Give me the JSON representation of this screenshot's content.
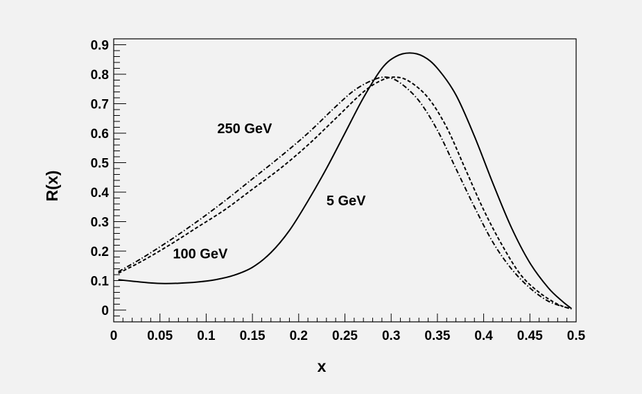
{
  "chart_data": {
    "type": "line",
    "xlabel": "x",
    "ylabel": "R(x)",
    "xlim": [
      0,
      0.5
    ],
    "ylim": [
      -0.04,
      0.92
    ],
    "grid": false,
    "legend": "none",
    "x_ticks": [
      {
        "value": 0,
        "label": "0"
      },
      {
        "value": 0.05,
        "label": "0.05"
      },
      {
        "value": 0.1,
        "label": "0.1"
      },
      {
        "value": 0.15,
        "label": "0.15"
      },
      {
        "value": 0.2,
        "label": "0.2"
      },
      {
        "value": 0.25,
        "label": "0.25"
      },
      {
        "value": 0.3,
        "label": "0.3"
      },
      {
        "value": 0.35,
        "label": "0.35"
      },
      {
        "value": 0.4,
        "label": "0.4"
      },
      {
        "value": 0.45,
        "label": "0.45"
      },
      {
        "value": 0.5,
        "label": "0.5"
      }
    ],
    "y_ticks": [
      {
        "value": 0,
        "label": "0"
      },
      {
        "value": 0.1,
        "label": "0.1"
      },
      {
        "value": 0.2,
        "label": "0.2"
      },
      {
        "value": 0.3,
        "label": "0.3"
      },
      {
        "value": 0.4,
        "label": "0.4"
      },
      {
        "value": 0.5,
        "label": "0.5"
      },
      {
        "value": 0.6,
        "label": "0.6"
      },
      {
        "value": 0.7,
        "label": "0.7"
      },
      {
        "value": 0.8,
        "label": "0.8"
      },
      {
        "value": 0.9,
        "label": "0.9"
      }
    ],
    "series": [
      {
        "id": "5gev",
        "dash": "solid",
        "color": "#000000",
        "x": [
          0.005,
          0.02,
          0.04,
          0.055,
          0.07,
          0.09,
          0.11,
          0.13,
          0.15,
          0.17,
          0.19,
          0.21,
          0.23,
          0.25,
          0.27,
          0.29,
          0.305,
          0.32,
          0.335,
          0.35,
          0.37,
          0.39,
          0.41,
          0.43,
          0.45,
          0.47,
          0.485,
          0.495
        ],
        "y": [
          0.103,
          0.098,
          0.092,
          0.09,
          0.091,
          0.095,
          0.103,
          0.118,
          0.145,
          0.195,
          0.27,
          0.37,
          0.48,
          0.6,
          0.72,
          0.82,
          0.86,
          0.872,
          0.86,
          0.82,
          0.73,
          0.59,
          0.43,
          0.28,
          0.16,
          0.075,
          0.03,
          0.005
        ]
      },
      {
        "id": "100gev",
        "dash": "dashed",
        "color": "#000000",
        "x": [
          0.005,
          0.03,
          0.06,
          0.09,
          0.12,
          0.15,
          0.18,
          0.21,
          0.24,
          0.27,
          0.29,
          0.305,
          0.32,
          0.34,
          0.36,
          0.38,
          0.4,
          0.42,
          0.44,
          0.46,
          0.48,
          0.495
        ],
        "y": [
          0.125,
          0.165,
          0.22,
          0.28,
          0.34,
          0.41,
          0.48,
          0.56,
          0.65,
          0.74,
          0.78,
          0.79,
          0.775,
          0.72,
          0.62,
          0.48,
          0.34,
          0.22,
          0.12,
          0.06,
          0.02,
          0.004
        ]
      },
      {
        "id": "250gev",
        "dash": "dashdot",
        "color": "#000000",
        "x": [
          0.005,
          0.03,
          0.06,
          0.09,
          0.12,
          0.15,
          0.18,
          0.21,
          0.24,
          0.26,
          0.28,
          0.295,
          0.31,
          0.33,
          0.35,
          0.37,
          0.39,
          0.41,
          0.43,
          0.45,
          0.47,
          0.49,
          0.495
        ],
        "y": [
          0.13,
          0.175,
          0.235,
          0.3,
          0.37,
          0.445,
          0.52,
          0.6,
          0.69,
          0.745,
          0.78,
          0.79,
          0.77,
          0.71,
          0.61,
          0.48,
          0.35,
          0.23,
          0.14,
          0.075,
          0.03,
          0.008,
          0.004
        ]
      }
    ],
    "annotations": [
      {
        "id": "250gev",
        "text": "250 GeV",
        "x": 0.112,
        "y": 0.6
      },
      {
        "id": "100gev",
        "text": "100 GeV",
        "x": 0.064,
        "y": 0.175
      },
      {
        "id": "5gev",
        "text": "5 GeV",
        "x": 0.23,
        "y": 0.355
      }
    ]
  }
}
